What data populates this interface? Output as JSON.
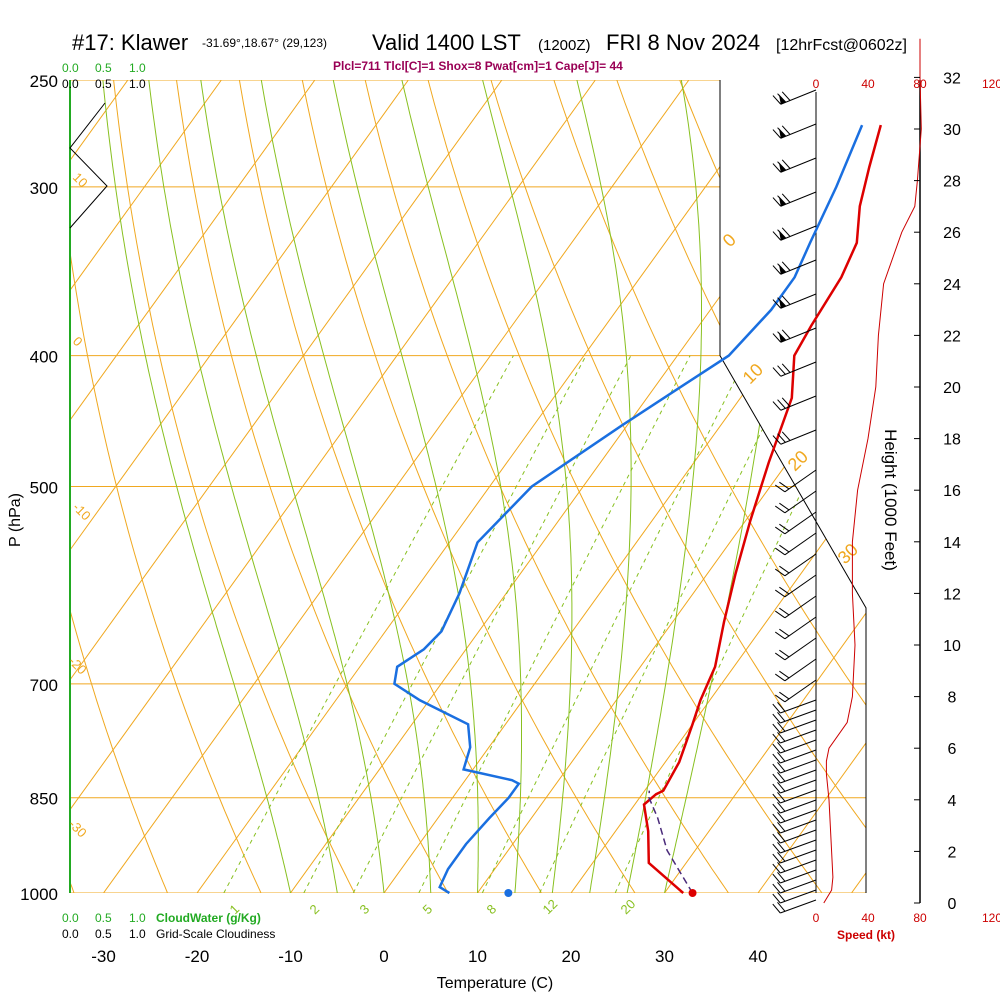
{
  "colors": {
    "temperature": "#dd0000",
    "dewpoint": "#1a6fe0",
    "parcel": "#4a2a7a",
    "isotherm": "#f0a820",
    "dry_adiabat": "#f0a820",
    "moist_adiabat": "#88c020",
    "mixing_ratio": "#88c020",
    "wind_speed": "#cc0000",
    "diag": "#990055",
    "cloud_green": "#22aa22",
    "black": "#000000"
  },
  "header": {
    "station": "#17: Klawer",
    "coords": "-31.69°,18.67° (29,123)",
    "valid": "Valid 1400 LST",
    "zulu": "(1200Z)",
    "date": "FRI 8 Nov 2024",
    "forecast": "[12hrFcst@0602z]",
    "diagnostics": "Plcl=711 Tlcl[C]=1 Shox=8 Pwat[cm]=1 Cape[J]= 44"
  },
  "labels": {
    "cloud_water": "CloudWater (g/Kg)",
    "cloudiness": "Grid-Scale Cloudiness",
    "scale_vals": [
      "0.0",
      "0.5",
      "1.0"
    ],
    "speed_label": "Speed (kt)",
    "height_label": "Height (1000 Feet)"
  },
  "chart_data": {
    "type": "line",
    "title": "#17: Klawer -31.69°,18.67° (29,123) Valid 1400 LST (1200Z) FRI 8 Nov 2024 [12hrFcst@0602z]",
    "xlabel": "Temperature (C)",
    "ylabel": "P (hPa)",
    "xlim": [
      -34,
      46
    ],
    "ylim": [
      1000,
      250
    ],
    "y_scale": "log",
    "x_ticks": [
      -30,
      -20,
      -10,
      0,
      10,
      20,
      30,
      40
    ],
    "y_ticks": [
      1000,
      850,
      700,
      500,
      400,
      300,
      250
    ],
    "series": [
      {
        "key": "temperature",
        "points": [
          [
            32.0,
            1000
          ],
          [
            26.0,
            950
          ],
          [
            23.5,
            900
          ],
          [
            21.0,
            860
          ],
          [
            21.5,
            845
          ],
          [
            22.0,
            840
          ],
          [
            21.5,
            800
          ],
          [
            20.0,
            750
          ],
          [
            19.0,
            720
          ],
          [
            18.0,
            680
          ],
          [
            15.5,
            630
          ],
          [
            13.0,
            580
          ],
          [
            10.5,
            530
          ],
          [
            8.0,
            480
          ],
          [
            5.5,
            430
          ],
          [
            2.5,
            400
          ],
          [
            2.0,
            380
          ],
          [
            1.5,
            350
          ],
          [
            0.5,
            330
          ],
          [
            -2.0,
            310
          ],
          [
            -4.0,
            290
          ],
          [
            -6.0,
            270
          ]
        ]
      },
      {
        "key": "dewpoint",
        "points": [
          [
            7.0,
            1000
          ],
          [
            5.5,
            990
          ],
          [
            5.0,
            960
          ],
          [
            5.0,
            920
          ],
          [
            5.5,
            880
          ],
          [
            6.0,
            850
          ],
          [
            6.0,
            830
          ],
          [
            5.0,
            825
          ],
          [
            -1.0,
            810
          ],
          [
            -2.0,
            780
          ],
          [
            -4.0,
            750
          ],
          [
            -11.0,
            720
          ],
          [
            -15.0,
            700
          ],
          [
            -16.0,
            680
          ],
          [
            -14.5,
            660
          ],
          [
            -14.0,
            640
          ],
          [
            -15.0,
            600
          ],
          [
            -17.0,
            550
          ],
          [
            -15.5,
            500
          ],
          [
            -10.5,
            450
          ],
          [
            -7.0,
            420
          ],
          [
            -4.5,
            400
          ],
          [
            -3.5,
            370
          ],
          [
            -3.5,
            350
          ],
          [
            -4.5,
            330
          ],
          [
            -6.0,
            300
          ],
          [
            -8.0,
            270
          ]
        ]
      },
      {
        "key": "parcel",
        "points": [
          [
            33.0,
            1000
          ],
          [
            27.0,
            930
          ],
          [
            23.5,
            880
          ],
          [
            21.0,
            850
          ],
          [
            20.5,
            840
          ]
        ]
      }
    ],
    "markers": [
      {
        "key": "temperature",
        "T": 33.0,
        "p": 1000
      },
      {
        "key": "dewpoint",
        "T": 13.3,
        "p": 1000
      }
    ],
    "wind_profile": {
      "axis_label": "Speed (kt)",
      "ticks": [
        0,
        40,
        80,
        120
      ],
      "height_kft": [
        0,
        0.5,
        1,
        2,
        3,
        4,
        5,
        5.5,
        6,
        7,
        8,
        10,
        12,
        14,
        16,
        18,
        20,
        22,
        24,
        26,
        27,
        28,
        30,
        32,
        33.5
      ],
      "speed_kt": [
        6,
        12,
        13,
        12,
        11,
        10,
        8,
        8,
        10,
        24,
        28,
        30,
        28,
        28,
        32,
        40,
        46,
        48,
        52,
        66,
        76,
        78,
        81,
        80,
        80
      ]
    },
    "height_axis": {
      "label": "Height (1000 Feet)",
      "ticks": [
        0,
        2,
        4,
        6,
        8,
        10,
        12,
        14,
        16,
        18,
        20,
        22,
        24,
        26,
        28,
        30,
        32
      ]
    },
    "isotherm_labels": [
      "10",
      "0",
      "-10",
      "-20",
      "-30",
      "0",
      "10",
      "20",
      "30"
    ],
    "mixing_ratio_labels": [
      "1",
      "2",
      "3",
      "5",
      "8",
      "12",
      "20"
    ]
  }
}
